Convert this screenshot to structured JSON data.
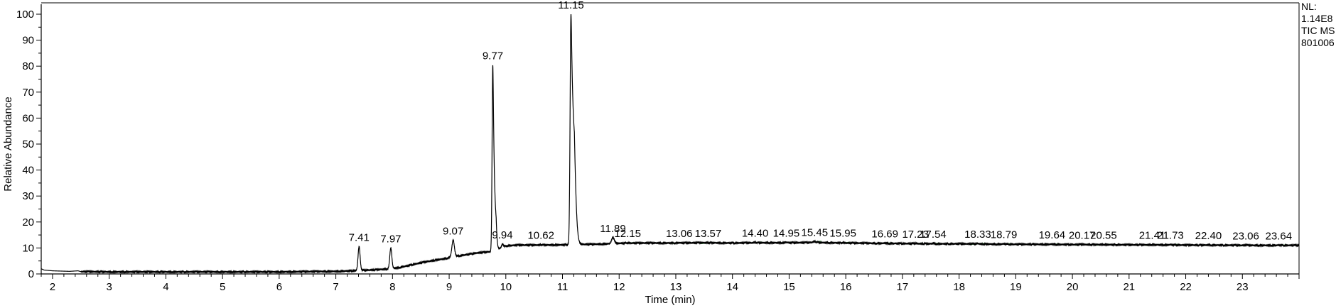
{
  "chart_data": {
    "type": "line",
    "xlabel": "Time (min)",
    "ylabel": "Relative Abundance",
    "xlim": [
      1.8,
      24.0
    ],
    "ylim": [
      0,
      100
    ],
    "x_ticks": [
      2,
      3,
      4,
      5,
      6,
      7,
      8,
      9,
      10,
      11,
      12,
      13,
      14,
      15,
      16,
      17,
      18,
      19,
      20,
      21,
      22,
      23
    ],
    "y_ticks": [
      0,
      10,
      20,
      30,
      40,
      50,
      60,
      70,
      80,
      90,
      100
    ],
    "grid": false,
    "info_lines": [
      "NL:",
      "1.14E8",
      "TIC  MS",
      "801006"
    ],
    "baseline": [
      [
        1.8,
        2.0
      ],
      [
        1.85,
        1.5
      ],
      [
        2.0,
        1.2
      ],
      [
        2.3,
        1.0
      ],
      [
        2.45,
        1.2
      ],
      [
        2.5,
        0.9
      ],
      [
        3.0,
        0.8
      ],
      [
        4.0,
        0.8
      ],
      [
        5.0,
        0.8
      ],
      [
        6.0,
        0.8
      ],
      [
        6.5,
        0.9
      ],
      [
        7.0,
        1.0
      ],
      [
        7.3,
        1.2
      ],
      [
        7.5,
        1.4
      ],
      [
        7.7,
        1.6
      ],
      [
        7.9,
        1.9
      ],
      [
        8.1,
        2.4
      ],
      [
        8.3,
        3.3
      ],
      [
        8.5,
        4.3
      ],
      [
        8.7,
        5.1
      ],
      [
        8.9,
        5.8
      ],
      [
        9.1,
        6.7
      ],
      [
        9.3,
        7.4
      ],
      [
        9.5,
        8.1
      ],
      [
        9.7,
        8.5
      ],
      [
        9.85,
        9.4
      ],
      [
        10.0,
        10.8
      ],
      [
        10.2,
        11.1
      ],
      [
        10.5,
        11.1
      ],
      [
        11.0,
        11.2
      ],
      [
        11.3,
        11.4
      ],
      [
        11.5,
        11.4
      ],
      [
        11.8,
        11.6
      ],
      [
        12.0,
        11.8
      ],
      [
        12.5,
        11.9
      ],
      [
        13.0,
        11.9
      ],
      [
        13.5,
        12.0
      ],
      [
        14.0,
        11.9
      ],
      [
        14.5,
        12.0
      ],
      [
        15.0,
        12.0
      ],
      [
        15.5,
        12.1
      ],
      [
        16.0,
        11.9
      ],
      [
        16.5,
        11.8
      ],
      [
        17.0,
        11.7
      ],
      [
        17.5,
        11.6
      ],
      [
        18.0,
        11.6
      ],
      [
        18.5,
        11.5
      ],
      [
        19.0,
        11.4
      ],
      [
        19.5,
        11.4
      ],
      [
        20.0,
        11.3
      ],
      [
        20.5,
        11.3
      ],
      [
        21.0,
        11.2
      ],
      [
        21.5,
        11.2
      ],
      [
        22.0,
        11.1
      ],
      [
        22.5,
        11.1
      ],
      [
        23.0,
        11.0
      ],
      [
        23.5,
        11.0
      ],
      [
        24.0,
        11.0
      ]
    ],
    "peaks": [
      {
        "label": "7.41",
        "x": 7.41,
        "height": 10.5,
        "width": 0.018,
        "tail": 0.0
      },
      {
        "label": "7.97",
        "x": 7.97,
        "height": 10.0,
        "width": 0.018,
        "tail": 0.0
      },
      {
        "label": "9.07",
        "x": 9.07,
        "height": 13.0,
        "width": 0.022,
        "tail": 0.0
      },
      {
        "label": "9.77",
        "x": 9.77,
        "height": 80.5,
        "width": 0.012,
        "tail": 0.02
      },
      {
        "label": "9.94",
        "x": 9.94,
        "height": 11.5,
        "width": 0.015,
        "tail": 0.0
      },
      {
        "label": "10.62",
        "x": 10.62,
        "height": 11.3,
        "width": 0.015,
        "tail": 0.0
      },
      {
        "label": "11.15",
        "x": 11.15,
        "height": 100.0,
        "width": 0.015,
        "tail": 0.035
      },
      {
        "label": "11.89",
        "x": 11.89,
        "height": 14.0,
        "width": 0.025,
        "tail": 0.0
      },
      {
        "label": "12.15",
        "x": 12.15,
        "height": 12.0,
        "width": 0.02,
        "tail": 0.0
      },
      {
        "label": "13.06",
        "x": 13.06,
        "height": 12.0,
        "width": 0.02,
        "tail": 0.0
      },
      {
        "label": "13.57",
        "x": 13.57,
        "height": 12.0,
        "width": 0.02,
        "tail": 0.0
      },
      {
        "label": "14.40",
        "x": 14.4,
        "height": 12.2,
        "width": 0.02,
        "tail": 0.0
      },
      {
        "label": "14.95",
        "x": 14.95,
        "height": 12.2,
        "width": 0.02,
        "tail": 0.0
      },
      {
        "label": "15.45",
        "x": 15.45,
        "height": 12.5,
        "width": 0.03,
        "tail": 0.0
      },
      {
        "label": "15.95",
        "x": 15.95,
        "height": 12.1,
        "width": 0.02,
        "tail": 0.0
      },
      {
        "label": "16.69",
        "x": 16.69,
        "height": 11.9,
        "width": 0.02,
        "tail": 0.0
      },
      {
        "label": "17.23",
        "x": 17.23,
        "height": 11.8,
        "width": 0.02,
        "tail": 0.0
      },
      {
        "label": "17.54",
        "x": 17.54,
        "height": 11.8,
        "width": 0.02,
        "tail": 0.0
      },
      {
        "label": "18.33",
        "x": 18.33,
        "height": 11.7,
        "width": 0.02,
        "tail": 0.0
      },
      {
        "label": "18.79",
        "x": 18.79,
        "height": 11.6,
        "width": 0.02,
        "tail": 0.0
      },
      {
        "label": "19.64",
        "x": 19.64,
        "height": 11.5,
        "width": 0.02,
        "tail": 0.0
      },
      {
        "label": "20.17",
        "x": 20.17,
        "height": 11.4,
        "width": 0.02,
        "tail": 0.0
      },
      {
        "label": "20.55",
        "x": 20.55,
        "height": 11.4,
        "width": 0.02,
        "tail": 0.0
      },
      {
        "label": "21.41",
        "x": 21.41,
        "height": 11.3,
        "width": 0.02,
        "tail": 0.0
      },
      {
        "label": "21.73",
        "x": 21.73,
        "height": 11.3,
        "width": 0.02,
        "tail": 0.0
      },
      {
        "label": "22.40",
        "x": 22.4,
        "height": 11.2,
        "width": 0.02,
        "tail": 0.0
      },
      {
        "label": "23.06",
        "x": 23.06,
        "height": 11.1,
        "width": 0.02,
        "tail": 0.0
      },
      {
        "label": "23.64",
        "x": 23.64,
        "height": 11.1,
        "width": 0.02,
        "tail": 0.0
      }
    ],
    "colors": {
      "trace": "#000000",
      "axis": "#000000",
      "integration_marks": "#4caf50",
      "background": "#ffffff"
    }
  }
}
